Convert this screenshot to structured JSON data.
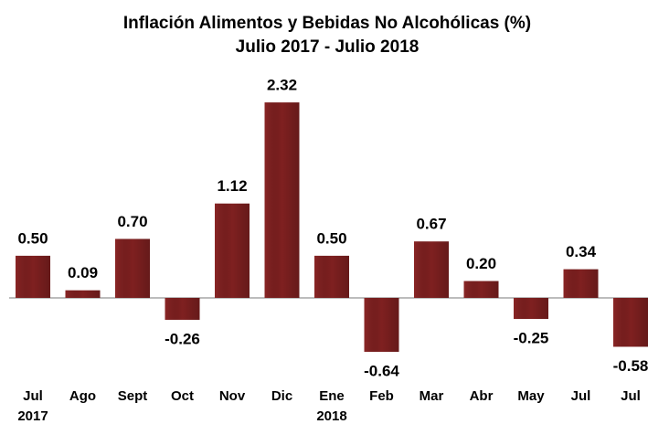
{
  "chart_data": {
    "type": "bar",
    "title": "Inflación Alimentos y Bebidas No Alcohólicas (%)",
    "subtitle": "Julio 2017 - Julio 2018",
    "categories": [
      "Jul 2017",
      "Ago",
      "Sept",
      "Oct",
      "Nov",
      "Dic",
      "Ene 2018",
      "Feb",
      "Mar",
      "Abr",
      "May",
      "Jul",
      "Jul"
    ],
    "values": [
      0.5,
      0.09,
      0.7,
      -0.26,
      1.12,
      2.32,
      0.5,
      -0.64,
      0.67,
      0.2,
      -0.25,
      0.34,
      -0.58
    ],
    "value_labels": [
      "0.50",
      "0.09",
      "0.70",
      "-0.26",
      "1.12",
      "2.32",
      "0.50",
      "-0.64",
      "0.67",
      "0.20",
      "-0.25",
      "0.34",
      "-0.58"
    ],
    "color": "#7f2020"
  }
}
